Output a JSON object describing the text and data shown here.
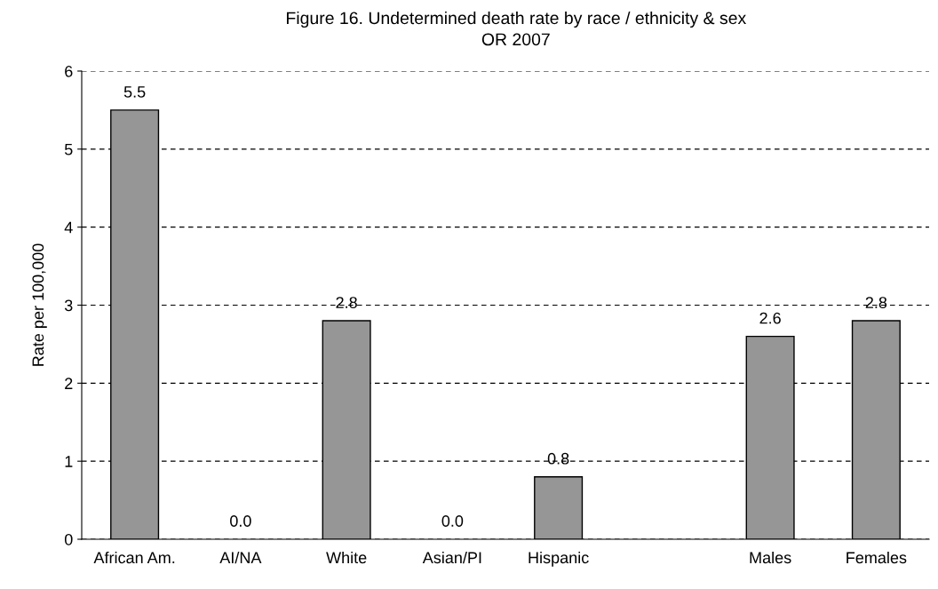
{
  "chart_data": {
    "type": "bar",
    "title": "Figure 16. Undetermined death rate by race / ethnicity & sex",
    "subtitle": "OR 2007",
    "ylabel": "Rate per 100,000",
    "categories": [
      "African Am.",
      "AI/NA",
      "White",
      "Asian/PI",
      "Hispanic",
      null,
      "Males",
      "Females"
    ],
    "values": [
      5.5,
      0.0,
      2.8,
      0.0,
      0.8,
      null,
      2.6,
      2.8
    ],
    "color": "#969696",
    "ylim": [
      0,
      6
    ],
    "yticks": [
      0,
      1,
      2,
      3,
      4,
      5,
      6
    ],
    "grid": "y",
    "value_labels": [
      "5.5",
      "0.0",
      "2.8",
      "0.0",
      "0.8",
      null,
      "2.6",
      "2.8"
    ]
  }
}
